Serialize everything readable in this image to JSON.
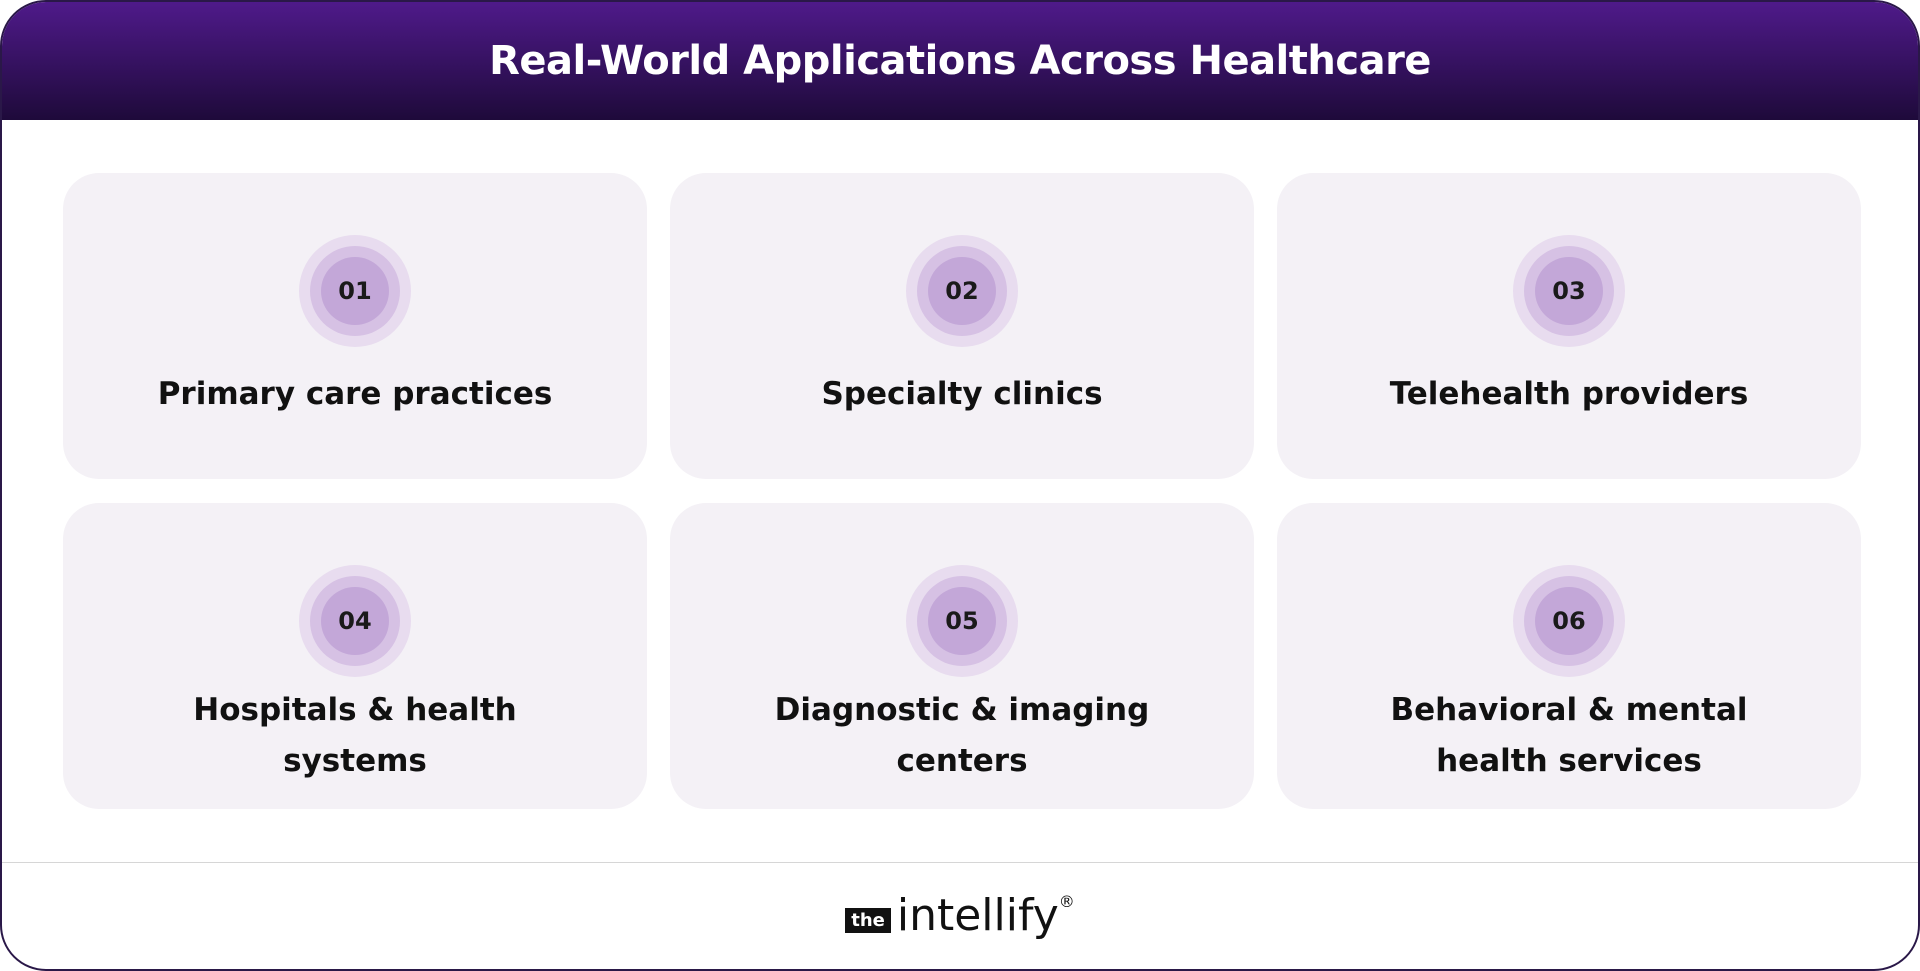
{
  "header": {
    "title": "Real-World Applications Across Healthcare"
  },
  "cards": [
    {
      "number": "01",
      "lines": [
        "Primary care practices"
      ]
    },
    {
      "number": "02",
      "lines": [
        "Specialty clinics"
      ]
    },
    {
      "number": "03",
      "lines": [
        "Telehealth providers"
      ]
    },
    {
      "number": "04",
      "lines": [
        "Hospitals & health",
        "systems"
      ]
    },
    {
      "number": "05",
      "lines": [
        "Diagnostic & imaging",
        "centers"
      ]
    },
    {
      "number": "06",
      "lines": [
        "Behavioral & mental",
        "health services"
      ]
    }
  ],
  "footer": {
    "logo": {
      "prefix": "the",
      "name": "intellify",
      "mark": "®"
    }
  }
}
